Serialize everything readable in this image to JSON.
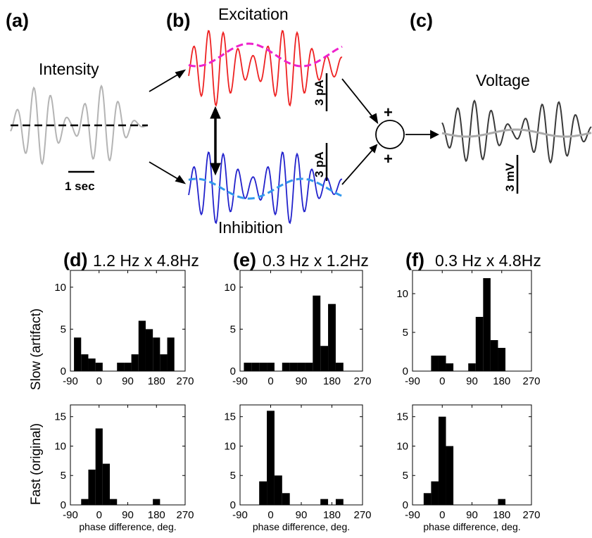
{
  "top": {
    "panel_a": "(a)",
    "panel_b": "(b)",
    "panel_c": "(c)",
    "intensity_title": "Intensity",
    "excitation_title": "Excitation",
    "inhibition_title": "Inhibition",
    "voltage_title": "Voltage",
    "scale_time": "1 sec",
    "scale_exc": "3 pA",
    "scale_inh": "3 pA",
    "scale_volt": "3 mV",
    "plus_top": "+",
    "plus_bottom": "+"
  },
  "colors": {
    "intensity": "#b4b4b4",
    "excitation": "#ee2222",
    "excitation_slow": "#ee22cc",
    "inhibition": "#2222cc",
    "inhibition_slow": "#3399ee",
    "voltage": "#3a3a3a",
    "voltage_slow": "#aaaaaa",
    "bar": "#000000"
  },
  "row_labels": {
    "slow": "Slow (artifact)",
    "fast": "Fast (original)"
  },
  "chart_data": [
    {
      "id": "d",
      "panel_label": "(d)",
      "title": "1.2 Hz x 4.8Hz",
      "slow": {
        "type": "bar",
        "x": [
          -67.5,
          -45,
          -22.5,
          0,
          22.5,
          45,
          67.5,
          90,
          112.5,
          135,
          157.5,
          180,
          202.5,
          225,
          247.5
        ],
        "values": [
          4,
          2,
          1.5,
          1,
          0,
          0,
          1,
          1,
          2,
          6,
          5,
          4,
          2,
          4,
          0
        ],
        "ylim": [
          0,
          12
        ],
        "yticks": [
          0,
          5,
          10
        ],
        "xlim": [
          -90,
          270
        ],
        "xticks": [
          -90,
          0,
          90,
          180,
          270
        ],
        "xlabel": ""
      },
      "fast": {
        "type": "bar",
        "x": [
          -67.5,
          -45,
          -22.5,
          0,
          22.5,
          45,
          67.5,
          90,
          112.5,
          135,
          157.5,
          180,
          202.5,
          225,
          247.5
        ],
        "values": [
          0,
          1,
          6,
          13,
          7,
          1,
          0,
          0,
          0,
          0,
          0,
          1,
          0,
          0,
          0
        ],
        "ylim": [
          0,
          17
        ],
        "yticks": [
          0,
          5,
          10,
          15
        ],
        "xlim": [
          -90,
          270
        ],
        "xticks": [
          -90,
          0,
          90,
          180,
          270
        ],
        "xlabel": "phase difference, deg."
      }
    },
    {
      "id": "e",
      "panel_label": "(e)",
      "title": "0.3 Hz x 1.2Hz",
      "slow": {
        "type": "bar",
        "x": [
          -67.5,
          -45,
          -22.5,
          0,
          22.5,
          45,
          67.5,
          90,
          112.5,
          135,
          157.5,
          180,
          202.5,
          225,
          247.5
        ],
        "values": [
          1,
          1,
          1,
          1,
          0,
          1,
          1,
          1,
          1,
          9,
          3,
          8,
          1,
          0,
          0
        ],
        "ylim": [
          0,
          12
        ],
        "yticks": [
          0,
          5,
          10
        ],
        "xlim": [
          -90,
          270
        ],
        "xticks": [
          -90,
          0,
          90,
          180,
          270
        ],
        "xlabel": ""
      },
      "fast": {
        "type": "bar",
        "x": [
          -67.5,
          -45,
          -22.5,
          0,
          22.5,
          45,
          67.5,
          90,
          112.5,
          135,
          157.5,
          180,
          202.5,
          225,
          247.5
        ],
        "values": [
          0,
          0,
          4,
          16,
          5,
          2,
          0,
          0,
          0,
          0,
          1,
          0,
          1,
          0,
          0
        ],
        "ylim": [
          0,
          17
        ],
        "yticks": [
          0,
          5,
          10,
          15
        ],
        "xlim": [
          -90,
          270
        ],
        "xticks": [
          -90,
          0,
          90,
          180,
          270
        ],
        "xlabel": "phase difference, deg."
      }
    },
    {
      "id": "f",
      "panel_label": "(f)",
      "title": "0.3 Hz x 4.8Hz",
      "slow": {
        "type": "bar",
        "x": [
          -67.5,
          -45,
          -22.5,
          0,
          22.5,
          45,
          67.5,
          90,
          112.5,
          135,
          157.5,
          180,
          202.5,
          225,
          247.5
        ],
        "values": [
          0,
          0,
          2,
          2,
          1,
          0,
          0,
          1,
          7,
          12,
          4,
          3,
          0,
          0,
          0
        ],
        "ylim": [
          0,
          13
        ],
        "yticks": [
          0,
          5,
          10
        ],
        "xlim": [
          -90,
          270
        ],
        "xticks": [
          -90,
          0,
          90,
          180,
          270
        ],
        "xlabel": ""
      },
      "fast": {
        "type": "bar",
        "x": [
          -67.5,
          -45,
          -22.5,
          0,
          22.5,
          45,
          67.5,
          90,
          112.5,
          135,
          157.5,
          180,
          202.5,
          225,
          247.5
        ],
        "values": [
          0,
          2,
          4,
          15,
          10,
          0,
          0,
          0,
          0,
          0,
          0,
          1,
          0,
          0,
          0
        ],
        "ylim": [
          0,
          17
        ],
        "yticks": [
          0,
          5,
          10,
          15
        ],
        "xlim": [
          -90,
          270
        ],
        "xticks": [
          -90,
          0,
          90,
          180,
          270
        ],
        "xlabel": "phase difference, deg."
      }
    }
  ]
}
